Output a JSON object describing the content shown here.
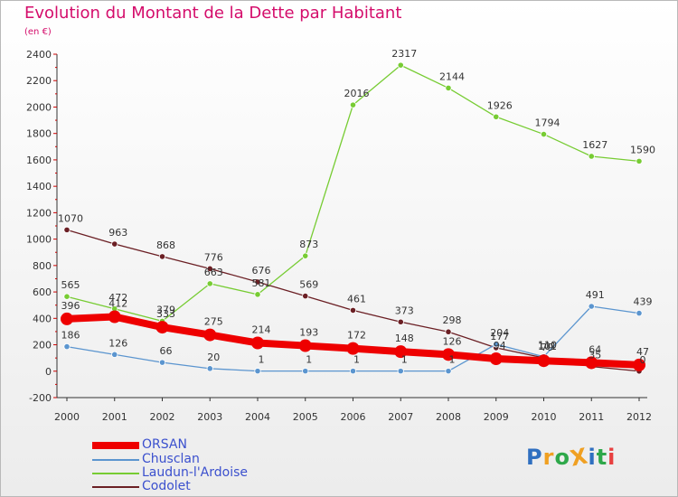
{
  "title": "Evolution du Montant de la Dette par Habitant",
  "subtitle": "(en €)",
  "logo": {
    "text": "ProXiti",
    "colors": [
      "#2f6fc0",
      "#f0a022",
      "#2ea84a",
      "#f0a022",
      "#2f6fc0",
      "#2ea84a",
      "#e84040"
    ]
  },
  "colors": {
    "title": "#d40d6b",
    "legend_text": "#3b50ce",
    "axis": "#333333"
  },
  "chart_data": {
    "type": "line",
    "x": [
      "2000",
      "2001",
      "2002",
      "2003",
      "2004",
      "2005",
      "2006",
      "2007",
      "2008",
      "2009",
      "2010",
      "2011",
      "2012"
    ],
    "ylim": [
      -200,
      2400
    ],
    "yticks": [
      "-200",
      "0",
      "200",
      "400",
      "600",
      "800",
      "1000",
      "1200",
      "1400",
      "1600",
      "1800",
      "2000",
      "2200",
      "2400"
    ],
    "legend_position": "bottom-left",
    "grid": false,
    "series": [
      {
        "name": "ORSAN",
        "color": "#ee0000",
        "values": [
          396,
          412,
          333,
          275,
          214,
          193,
          172,
          148,
          126,
          94,
          79,
          64,
          47
        ],
        "labels": [
          "396",
          "412",
          "333",
          "275",
          "214",
          "193",
          "172",
          "148",
          "126",
          "94",
          "79",
          "64",
          "47"
        ]
      },
      {
        "name": "Chusclan",
        "color": "#5b95cf",
        "values": [
          186,
          126,
          66,
          20,
          1,
          1,
          1,
          1,
          1,
          204,
          110,
          491,
          439
        ],
        "labels": [
          "186",
          "126",
          "66",
          "20",
          "1",
          "1",
          "1",
          "1",
          "1",
          "204",
          "110",
          "491",
          "439"
        ]
      },
      {
        "name": "Laudun-l'Ardoise",
        "color": "#77cc33",
        "values": [
          565,
          472,
          379,
          663,
          581,
          873,
          2016,
          2317,
          2144,
          1926,
          1794,
          1627,
          1590
        ],
        "labels": [
          "565",
          "472",
          "379",
          "663",
          "581",
          "873",
          "2016",
          "2317",
          "2144",
          "1926",
          "1794",
          "1627",
          "1590"
        ]
      },
      {
        "name": "Codolet",
        "color": "#6b1f24",
        "values": [
          1070,
          963,
          868,
          776,
          676,
          569,
          461,
          373,
          298,
          177,
          101,
          35,
          0
        ],
        "labels": [
          "1070",
          "963",
          "868",
          "776",
          "676",
          "569",
          "461",
          "373",
          "298",
          "177",
          "101",
          "35",
          "0"
        ]
      }
    ]
  }
}
